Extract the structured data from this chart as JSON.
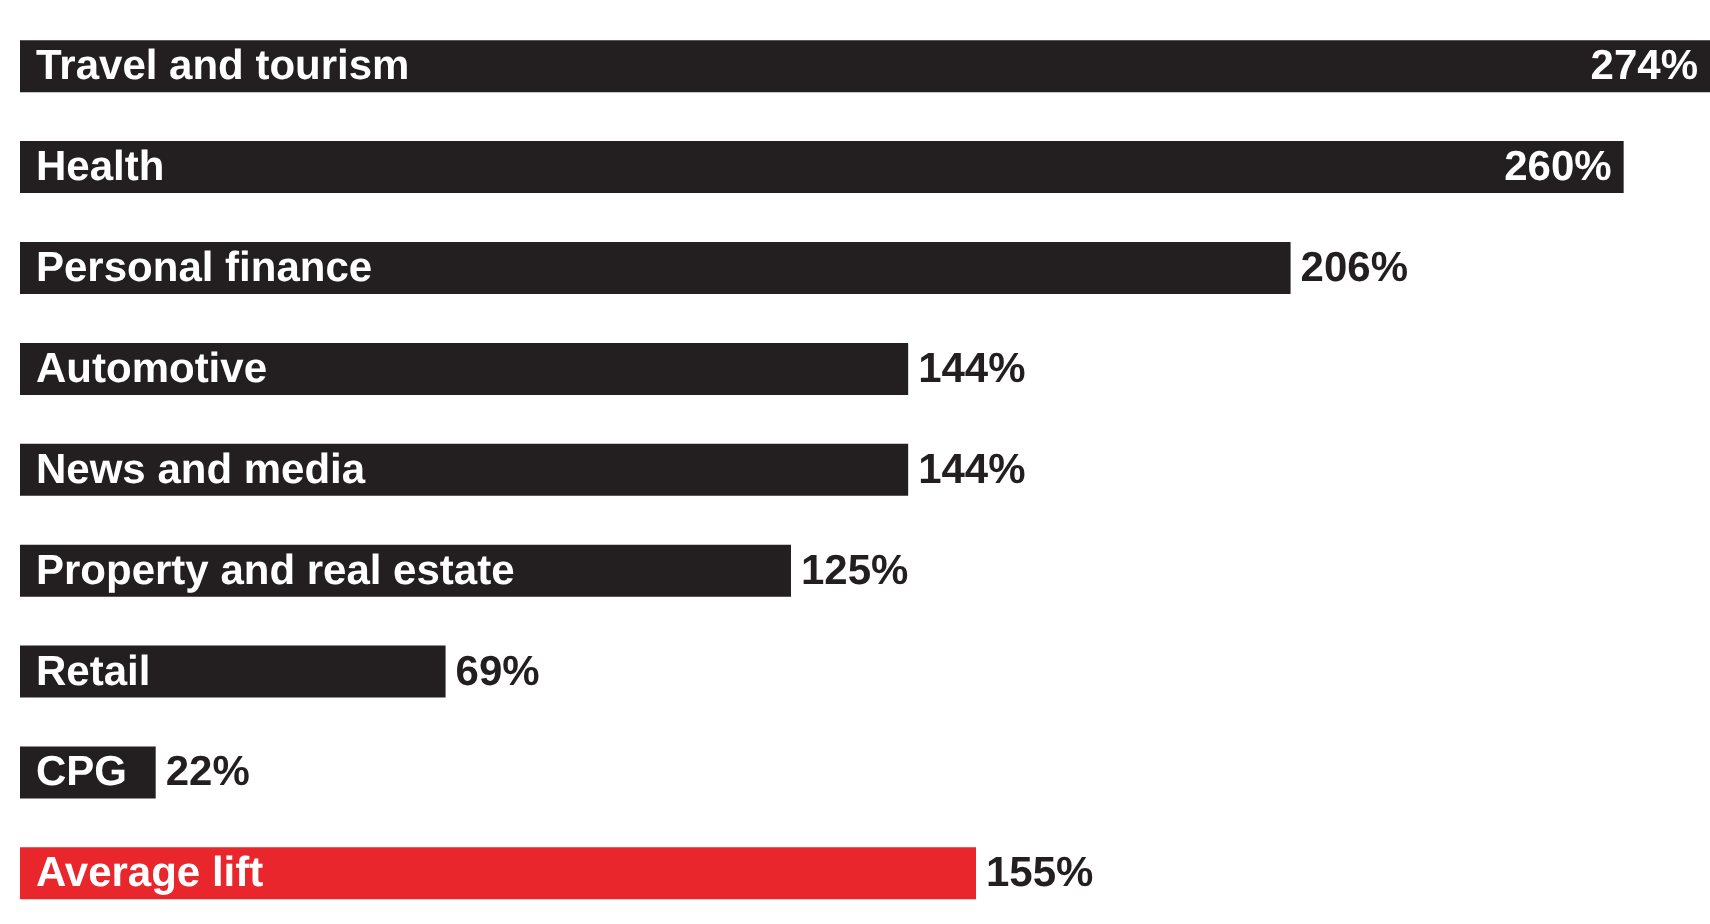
{
  "chart_data": {
    "type": "bar",
    "orientation": "horizontal",
    "categories": [
      "Travel and tourism",
      "Health",
      "Personal finance",
      "Automotive",
      "News and media",
      "Property and real estate",
      "Retail",
      "CPG",
      "Average lift"
    ],
    "values": [
      274,
      260,
      206,
      144,
      144,
      125,
      69,
      22,
      155
    ],
    "colors": [
      "#231f20",
      "#231f20",
      "#231f20",
      "#231f20",
      "#231f20",
      "#231f20",
      "#231f20",
      "#231f20",
      "#e8262b"
    ],
    "value_labels": [
      "274%",
      "260%",
      "206%",
      "144%",
      "144%",
      "125%",
      "69%",
      "22%",
      "155%"
    ]
  }
}
